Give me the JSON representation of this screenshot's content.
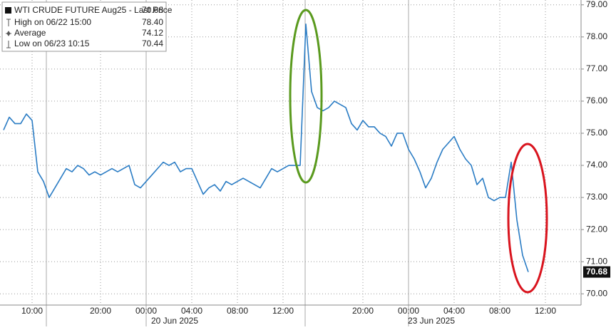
{
  "chart_data": {
    "type": "line",
    "categories": [
      null,
      null,
      null,
      null,
      null,
      "10:00",
      null,
      null,
      null,
      null,
      null,
      null,
      null,
      null,
      null,
      null,
      null,
      "20:00",
      null,
      null,
      null,
      null,
      null,
      null,
      null,
      "00:00",
      null,
      null,
      null,
      null,
      null,
      null,
      null,
      "04:00",
      null,
      null,
      null,
      null,
      null,
      null,
      null,
      "08:00",
      null,
      null,
      null,
      null,
      null,
      null,
      null,
      "12:00",
      null,
      null,
      null,
      null,
      null,
      null,
      null,
      null,
      null,
      null,
      null,
      null,
      null,
      "20:00",
      null,
      null,
      null,
      null,
      null,
      null,
      null,
      "00:00",
      null,
      null,
      null,
      null,
      null,
      null,
      null,
      "04:00",
      null,
      null,
      null,
      null,
      null,
      null,
      null,
      "08:00",
      null,
      null,
      null,
      null,
      null,
      null,
      null,
      "12:00"
    ],
    "date_labels": [
      "20 Jun 2025",
      "23 Jun 2025"
    ],
    "series": [
      {
        "name": "WTI CRUDE FUTURE Aug25 - Last Price",
        "color": "#2a7cc4",
        "values": [
          75.1,
          75.5,
          75.3,
          75.3,
          75.6,
          75.4,
          73.8,
          73.5,
          73.0,
          73.3,
          73.6,
          73.9,
          73.8,
          74.0,
          73.9,
          73.7,
          73.8,
          73.7,
          73.8,
          73.9,
          73.8,
          73.9,
          74.0,
          73.4,
          73.3,
          73.5,
          73.7,
          73.9,
          74.1,
          74.0,
          74.1,
          73.8,
          73.9,
          73.9,
          73.5,
          73.1,
          73.3,
          73.4,
          73.2,
          73.5,
          73.4,
          73.5,
          73.6,
          73.5,
          73.4,
          73.3,
          73.6,
          73.9,
          73.8,
          73.9,
          74.0,
          74.0,
          74.0,
          78.4,
          76.3,
          75.8,
          75.7,
          75.8,
          76.0,
          75.9,
          75.8,
          75.3,
          75.1,
          75.4,
          75.2,
          75.2,
          75.0,
          74.9,
          74.6,
          75.0,
          75.0,
          74.5,
          74.2,
          73.8,
          73.3,
          73.6,
          74.1,
          74.5,
          74.7,
          74.9,
          74.5,
          74.2,
          74.0,
          73.4,
          73.6,
          73.0,
          72.9,
          73.0,
          73.0,
          74.1,
          72.3,
          71.2,
          70.68,
          null,
          null,
          null
        ]
      }
    ],
    "last_price": {
      "value": 70.68,
      "label": "70.68"
    },
    "stats": [
      {
        "label": "High on 06/22 15:00",
        "value": "78.40"
      },
      {
        "label": "Average",
        "value": "74.12"
      },
      {
        "label": "Low on 06/23 10:15",
        "value": "70.44"
      }
    ],
    "ylim": [
      69.65,
      79.15
    ],
    "yticks": [
      {
        "value": 70,
        "label": "70.00"
      },
      {
        "value": 71,
        "label": "71.00"
      },
      {
        "value": 72,
        "label": "72.00"
      },
      {
        "value": 73,
        "label": "73.00"
      },
      {
        "value": 74,
        "label": "74.00"
      },
      {
        "value": 75,
        "label": "75.00"
      },
      {
        "value": 76,
        "label": "76.00"
      },
      {
        "value": 77,
        "label": "77.00"
      },
      {
        "value": 78,
        "label": "78.00"
      },
      {
        "value": 79,
        "label": "79.00"
      }
    ],
    "grid": true
  }
}
